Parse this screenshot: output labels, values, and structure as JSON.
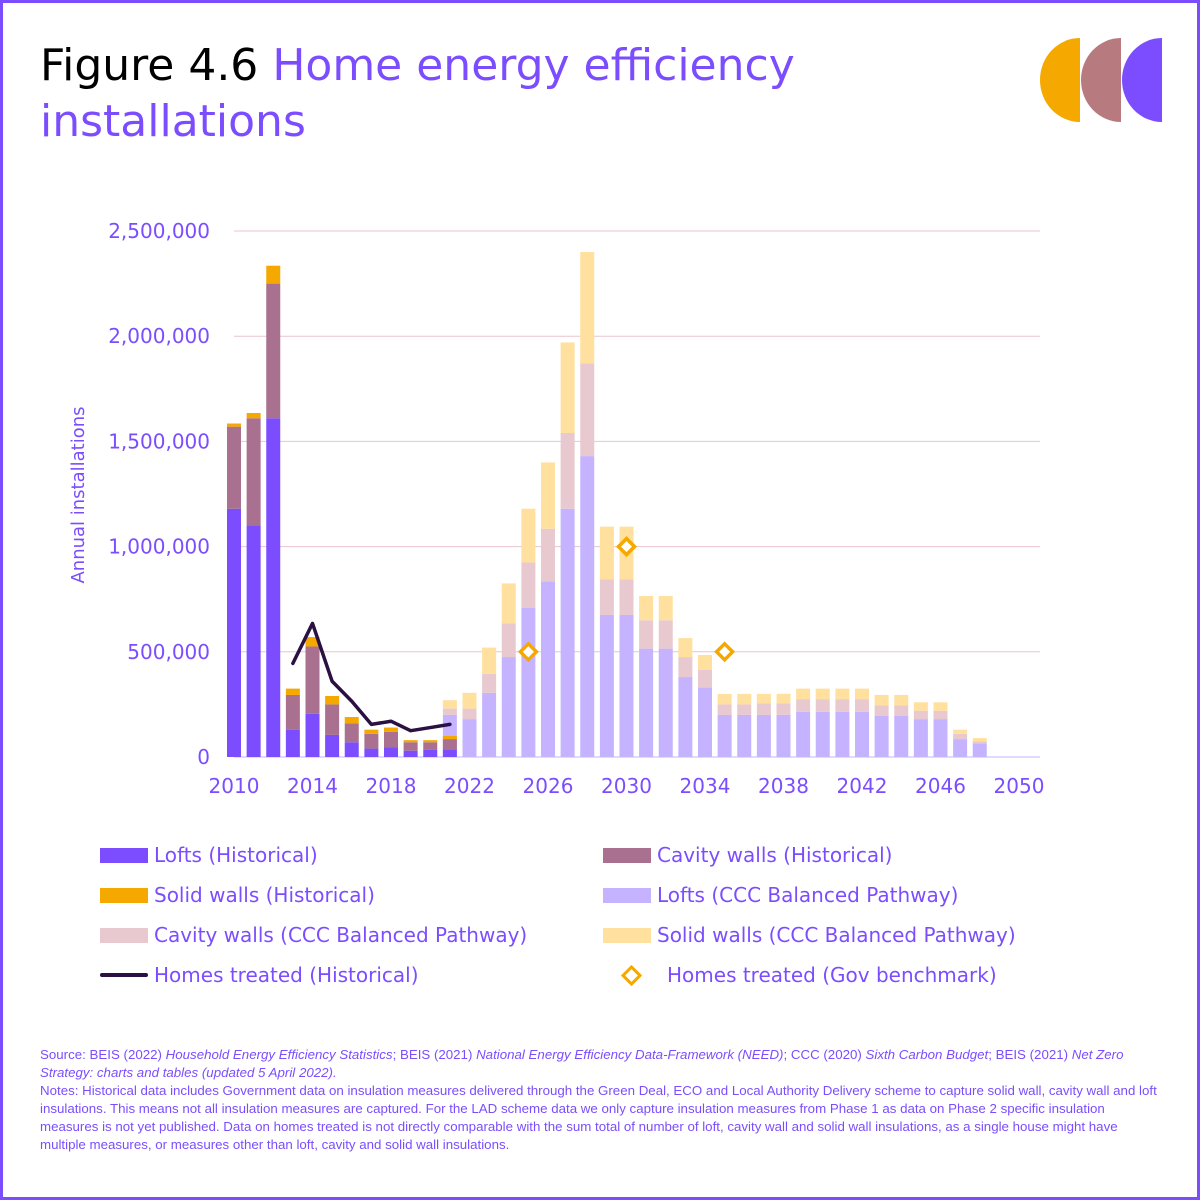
{
  "figure": {
    "label": "Figure 4.6",
    "title_line1": "Home energy efficiency",
    "title_line2": "installations"
  },
  "colors": {
    "accent": "#7b4dff",
    "lofts_hist": "#7b4dff",
    "cavity_hist": "#a9708f",
    "solid_hist": "#f5a800",
    "lofts_ccc": "#c5b3ff",
    "cavity_ccc": "#e8c9cf",
    "solid_ccc": "#ffe09e",
    "homes_hist": "#2a1142",
    "benchmark": "#f5a800",
    "logo": [
      "#f5a800",
      "#b77a7f",
      "#7b4dff"
    ]
  },
  "legend": {
    "lofts_hist": "Lofts (Historical)",
    "cavity_hist": "Cavity walls (Historical)",
    "solid_hist": "Solid walls (Historical)",
    "lofts_ccc": "Lofts (CCC Balanced Pathway)",
    "cavity_ccc": "Cavity walls (CCC Balanced Pathway)",
    "solid_ccc": "Solid walls (CCC Balanced Pathway)",
    "homes_hist": "Homes treated (Historical)",
    "benchmark": "Homes treated (Gov benchmark)"
  },
  "source": {
    "s1": "Source: BEIS (2022) ",
    "s1_i": "Household Energy Efficiency Statistics",
    "s2": "; BEIS (2021) ",
    "s2_i": "National Energy Efficiency Data-Framework (NEED)",
    "s3": "; CCC (2020) ",
    "s3_i": "Sixth Carbon Budget",
    "s4": "; BEIS (2021) ",
    "s4_i": "Net Zero Strategy: charts and tables (updated 5 April 2022).",
    "notes": "Notes: Historical data includes Government data on insulation measures delivered through the Green Deal, ECO and Local Authority Delivery scheme to capture solid wall, cavity wall and loft insulations. This means not all insulation measures are captured. For the LAD scheme data we only capture insulation measures from Phase 1 as data on Phase 2 specific insulation measures is not yet published. Data on homes treated is not directly comparable with the sum total of number of loft, cavity wall and solid wall insulations, as a single house might have multiple measures, or measures other than loft, cavity and solid wall insulations."
  },
  "chart_data": {
    "type": "bar",
    "stacked": true,
    "ylabel": "Annual installations",
    "ylim": [
      0,
      2500000
    ],
    "yticks": [
      0,
      500000,
      1000000,
      1500000,
      2000000,
      2500000
    ],
    "ytick_labels": [
      "0",
      "500,000",
      "1,000,000",
      "1,500,000",
      "2,000,000",
      "2,500,000"
    ],
    "xlim": [
      2010,
      2050
    ],
    "xticks": [
      2010,
      2014,
      2018,
      2022,
      2026,
      2030,
      2034,
      2038,
      2042,
      2046,
      2050
    ],
    "xtick_labels": [
      "2010",
      "2014",
      "2018",
      "2022",
      "2026",
      "2030",
      "2034",
      "2038",
      "2042",
      "2046",
      "2050"
    ],
    "historical": {
      "years": [
        2010,
        2011,
        2012,
        2013,
        2014,
        2015,
        2016,
        2017,
        2018,
        2019,
        2020,
        2021
      ],
      "lofts": [
        1180000,
        1100000,
        1610000,
        130000,
        205000,
        105000,
        70000,
        40000,
        45000,
        30000,
        35000,
        35000
      ],
      "cavity": [
        390000,
        510000,
        640000,
        165000,
        320000,
        145000,
        90000,
        70000,
        75000,
        40000,
        35000,
        50000
      ],
      "solid": [
        15000,
        25000,
        85000,
        30000,
        45000,
        40000,
        30000,
        20000,
        20000,
        10000,
        10000,
        15000
      ]
    },
    "pathway": {
      "years": [
        2021,
        2022,
        2023,
        2024,
        2025,
        2026,
        2027,
        2028,
        2029,
        2030,
        2031,
        2032,
        2033,
        2034,
        2035,
        2036,
        2037,
        2038,
        2039,
        2040,
        2041,
        2042,
        2043,
        2044,
        2045,
        2046,
        2047,
        2048
      ],
      "lofts": [
        200000,
        180000,
        305000,
        475000,
        710000,
        835000,
        1180000,
        1430000,
        675000,
        675000,
        515000,
        515000,
        380000,
        330000,
        200000,
        200000,
        200000,
        200000,
        215000,
        215000,
        215000,
        215000,
        195000,
        195000,
        180000,
        180000,
        85000,
        65000
      ],
      "cavity": [
        30000,
        50000,
        90000,
        160000,
        215000,
        250000,
        360000,
        440000,
        170000,
        170000,
        135000,
        135000,
        95000,
        85000,
        50000,
        50000,
        55000,
        55000,
        60000,
        60000,
        60000,
        60000,
        50000,
        50000,
        40000,
        40000,
        25000,
        10000
      ],
      "solid": [
        40000,
        75000,
        125000,
        190000,
        255000,
        315000,
        430000,
        530000,
        250000,
        250000,
        115000,
        115000,
        90000,
        70000,
        50000,
        50000,
        45000,
        45000,
        50000,
        50000,
        50000,
        50000,
        50000,
        50000,
        40000,
        40000,
        20000,
        15000
      ]
    },
    "homes_treated_historical": {
      "years": [
        2013,
        2014,
        2015,
        2016,
        2017,
        2018,
        2019,
        2020,
        2021
      ],
      "values": [
        445000,
        635000,
        360000,
        265000,
        155000,
        170000,
        125000,
        140000,
        155000
      ]
    },
    "gov_benchmark": {
      "years": [
        2025,
        2030,
        2035
      ],
      "values": [
        500000,
        1000000,
        500000
      ]
    }
  }
}
